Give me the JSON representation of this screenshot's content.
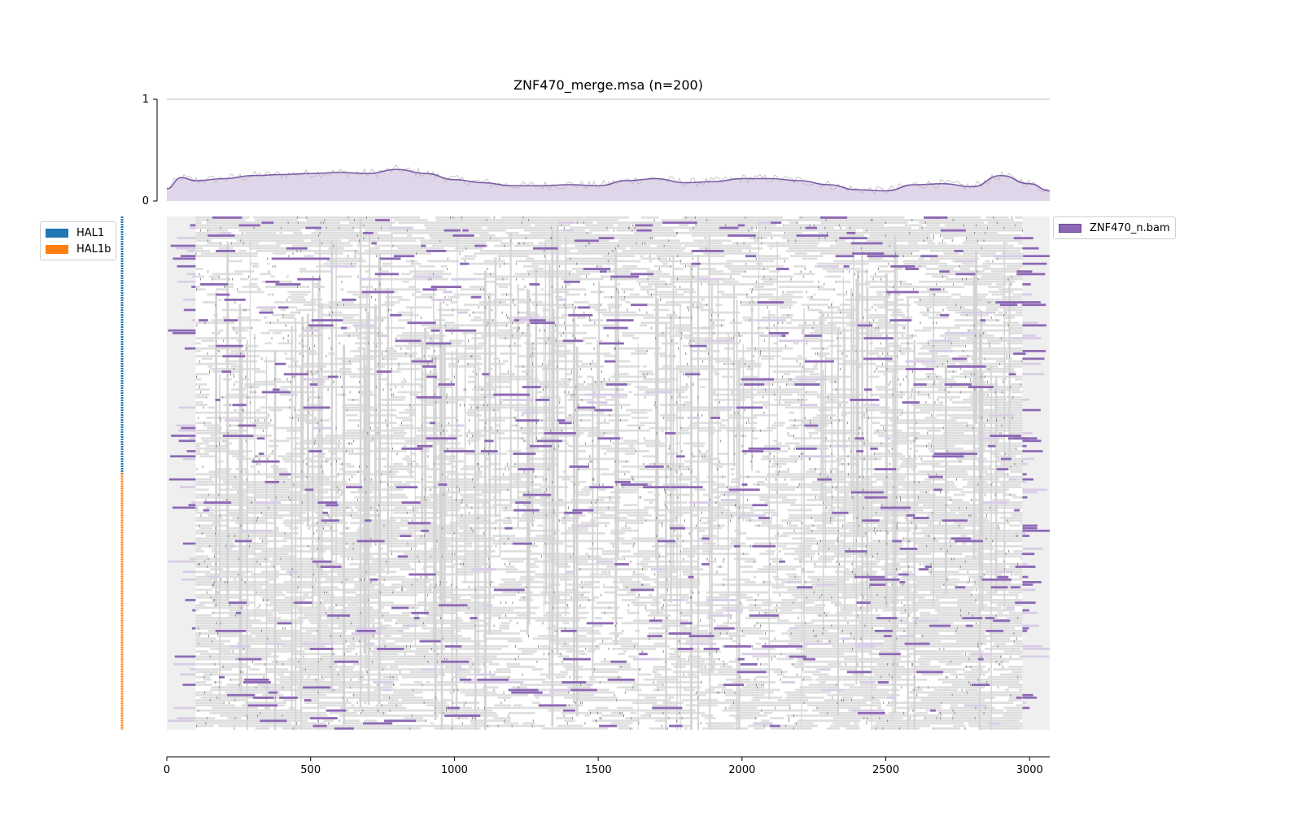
{
  "title": "ZNF470_merge.msa (n=200)",
  "colors": {
    "hal1": "#1f77b4",
    "hal1b": "#ff7f0e",
    "bam": "#8c68b4",
    "bam_fill": "#e0d6ea",
    "gap": "#dedede",
    "flank": "#efefef",
    "line_raw": "#bbbbbb"
  },
  "legend_groups": [
    {
      "label": "HAL1",
      "color": "#1f77b4"
    },
    {
      "label": "HAL1b",
      "color": "#ff7f0e"
    }
  ],
  "legend_bam": {
    "label": "ZNF470_n.bam"
  },
  "chart_data": {
    "type": "area",
    "title": "ZNF470_merge.msa (n=200)",
    "coverage": {
      "x": [
        0,
        50,
        100,
        200,
        300,
        400,
        500,
        600,
        700,
        800,
        900,
        1000,
        1100,
        1200,
        1300,
        1400,
        1500,
        1600,
        1700,
        1800,
        1900,
        2000,
        2100,
        2200,
        2300,
        2400,
        2500,
        2600,
        2700,
        2800,
        2900,
        3000,
        3070
      ],
      "y": [
        0.12,
        0.23,
        0.2,
        0.22,
        0.25,
        0.26,
        0.27,
        0.28,
        0.27,
        0.31,
        0.27,
        0.21,
        0.18,
        0.15,
        0.15,
        0.16,
        0.15,
        0.2,
        0.22,
        0.18,
        0.19,
        0.22,
        0.22,
        0.2,
        0.16,
        0.11,
        0.1,
        0.16,
        0.17,
        0.14,
        0.25,
        0.17,
        0.1
      ],
      "ylim": [
        0,
        1
      ],
      "yticks": [
        "0",
        "1"
      ]
    },
    "msa": {
      "n_sequences": 200,
      "xlim": [
        0,
        3070
      ],
      "xticks": [
        "0",
        "500",
        "1000",
        "1500",
        "2000",
        "2500",
        "3000"
      ],
      "xtick_values": [
        0,
        500,
        1000,
        1500,
        2000,
        2500,
        3000
      ],
      "groups": [
        {
          "name": "HAL1",
          "count": 100
        },
        {
          "name": "HAL1b",
          "count": 100
        }
      ],
      "flank_left": [
        0,
        100
      ],
      "flank_right": [
        2975,
        3070
      ],
      "series_name": "ZNF470_n.bam"
    }
  }
}
